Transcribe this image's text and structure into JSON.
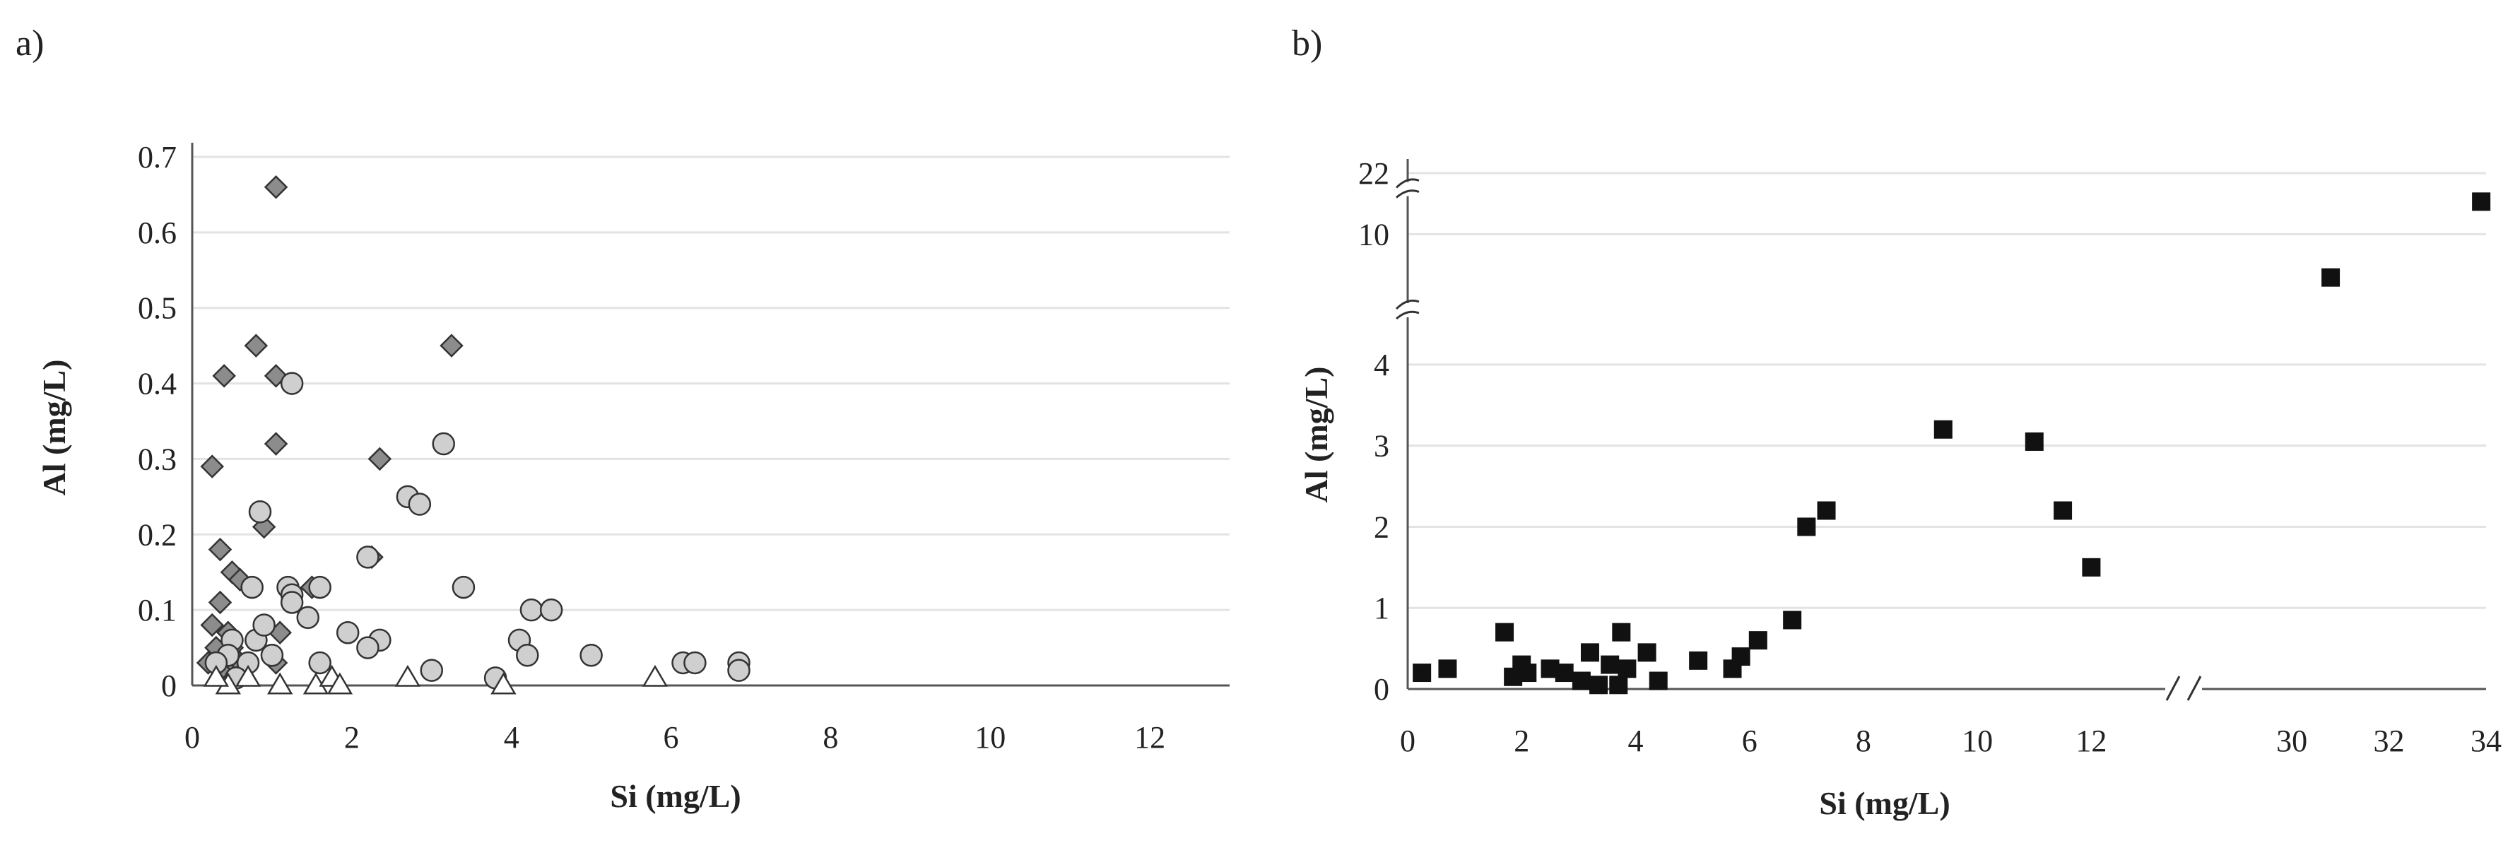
{
  "chart_data": [
    {
      "type": "scatter",
      "panel_label": "a)",
      "title": "",
      "xlabel": "Si (mg/L)",
      "ylabel": "Al (mg/L)",
      "xlim": [
        0,
        13
      ],
      "ylim": [
        0,
        0.7
      ],
      "xticks": [
        0,
        2,
        4,
        6,
        8,
        10,
        12
      ],
      "yticks": [
        0,
        0.1,
        0.2,
        0.3,
        0.4,
        0.5,
        0.6,
        0.7
      ],
      "ytick_labels": [
        "0",
        "0.1",
        "0.2",
        "0.3",
        "0.4",
        "0.5",
        "0.6",
        "0.7"
      ],
      "grid": "horizontal",
      "colors": {
        "diamond": "#8c8c8c",
        "circle": "#cfcfcf",
        "triangle": "#ffffff",
        "stroke": "#333333"
      },
      "series": [
        {
          "marker": "diamond",
          "points": [
            [
              1.05,
              0.66
            ],
            [
              0.8,
              0.45
            ],
            [
              0.4,
              0.41
            ],
            [
              3.25,
              0.45
            ],
            [
              1.05,
              0.41
            ],
            [
              1.05,
              0.32
            ],
            [
              2.35,
              0.3
            ],
            [
              0.25,
              0.29
            ],
            [
              0.35,
              0.18
            ],
            [
              0.5,
              0.15
            ],
            [
              0.9,
              0.21
            ],
            [
              0.6,
              0.14
            ],
            [
              0.35,
              0.11
            ],
            [
              0.25,
              0.08
            ],
            [
              0.45,
              0.07
            ],
            [
              0.3,
              0.05
            ],
            [
              0.5,
              0.05
            ],
            [
              0.2,
              0.03
            ],
            [
              0.35,
              0.03
            ],
            [
              0.45,
              0.02
            ],
            [
              0.6,
              0.03
            ],
            [
              0.8,
              0.06
            ],
            [
              1.1,
              0.07
            ],
            [
              1.05,
              0.03
            ],
            [
              2.25,
              0.17
            ],
            [
              1.5,
              0.13
            ],
            [
              0.35,
              0.02
            ],
            [
              0.55,
              0.01
            ]
          ]
        },
        {
          "marker": "circle",
          "points": [
            [
              1.25,
              0.4
            ],
            [
              0.85,
              0.23
            ],
            [
              3.15,
              0.32
            ],
            [
              2.7,
              0.25
            ],
            [
              2.85,
              0.24
            ],
            [
              2.2,
              0.17
            ],
            [
              3.4,
              0.13
            ],
            [
              1.2,
              0.13
            ],
            [
              1.25,
              0.12
            ],
            [
              1.25,
              0.11
            ],
            [
              1.6,
              0.13
            ],
            [
              0.75,
              0.13
            ],
            [
              1.45,
              0.09
            ],
            [
              1.95,
              0.07
            ],
            [
              2.35,
              0.06
            ],
            [
              2.2,
              0.05
            ],
            [
              4.1,
              0.06
            ],
            [
              4.25,
              0.1
            ],
            [
              4.5,
              0.1
            ],
            [
              4.2,
              0.04
            ],
            [
              3.0,
              0.02
            ],
            [
              3.8,
              0.01
            ],
            [
              5.0,
              0.04
            ],
            [
              6.15,
              0.03
            ],
            [
              6.3,
              0.03
            ],
            [
              6.85,
              0.03
            ],
            [
              6.85,
              0.02
            ],
            [
              1.6,
              0.03
            ],
            [
              0.8,
              0.06
            ],
            [
              0.9,
              0.08
            ],
            [
              0.5,
              0.06
            ],
            [
              0.45,
              0.04
            ],
            [
              0.7,
              0.03
            ],
            [
              0.3,
              0.03
            ],
            [
              0.55,
              0.01
            ],
            [
              1.0,
              0.04
            ]
          ]
        },
        {
          "marker": "triangle",
          "points": [
            [
              0.45,
              0.0
            ],
            [
              0.7,
              0.01
            ],
            [
              1.1,
              0.0
            ],
            [
              1.55,
              0.0
            ],
            [
              1.75,
              0.01
            ],
            [
              1.85,
              0.0
            ],
            [
              2.7,
              0.01
            ],
            [
              3.9,
              0.0
            ],
            [
              5.8,
              0.01
            ],
            [
              0.3,
              0.01
            ]
          ]
        }
      ]
    },
    {
      "type": "scatter",
      "panel_label": "b)",
      "title": "",
      "xlabel": "Si (mg/L)",
      "ylabel": "Al (mg/L)",
      "x_segments": [
        {
          "xlim": [
            0,
            13
          ],
          "ticks": [
            0,
            2,
            4,
            6,
            8,
            10,
            12
          ]
        },
        {
          "xlim": [
            28.5,
            34
          ],
          "ticks": [
            30,
            32,
            34
          ]
        }
      ],
      "y_segments": [
        {
          "ylim": [
            0,
            4.4
          ],
          "ticks": [
            0,
            1,
            2,
            3,
            4
          ]
        },
        {
          "ylim": [
            9,
            10.8
          ],
          "ticks": [
            10
          ]
        },
        {
          "ylim": [
            21.6,
            22.4
          ],
          "ticks": [
            22
          ]
        }
      ],
      "grid": "horizontal",
      "axis_breaks": "x between 12 and 30; y between 4 and 10 and between 10 and 22",
      "colors": {
        "marker": "#111111"
      },
      "series": [
        {
          "marker": "square",
          "points": [
            [
              0.25,
              0.2
            ],
            [
              0.7,
              0.25
            ],
            [
              1.7,
              0.7
            ],
            [
              1.85,
              0.15
            ],
            [
              2.0,
              0.3
            ],
            [
              2.1,
              0.2
            ],
            [
              2.5,
              0.25
            ],
            [
              2.75,
              0.2
            ],
            [
              3.05,
              0.1
            ],
            [
              3.2,
              0.45
            ],
            [
              3.35,
              0.05
            ],
            [
              3.55,
              0.3
            ],
            [
              3.7,
              0.05
            ],
            [
              3.75,
              0.7
            ],
            [
              3.85,
              0.25
            ],
            [
              4.2,
              0.45
            ],
            [
              4.4,
              0.1
            ],
            [
              5.1,
              0.35
            ],
            [
              5.7,
              0.25
            ],
            [
              5.85,
              0.4
            ],
            [
              6.15,
              0.6
            ],
            [
              6.75,
              0.85
            ],
            [
              7.0,
              2.0
            ],
            [
              7.35,
              2.2
            ],
            [
              9.4,
              3.2
            ],
            [
              11.0,
              3.05
            ],
            [
              11.5,
              2.2
            ],
            [
              12.0,
              1.5
            ],
            [
              30.8,
              9.2
            ],
            [
              33.9,
              10.6
            ]
          ]
        }
      ]
    }
  ]
}
